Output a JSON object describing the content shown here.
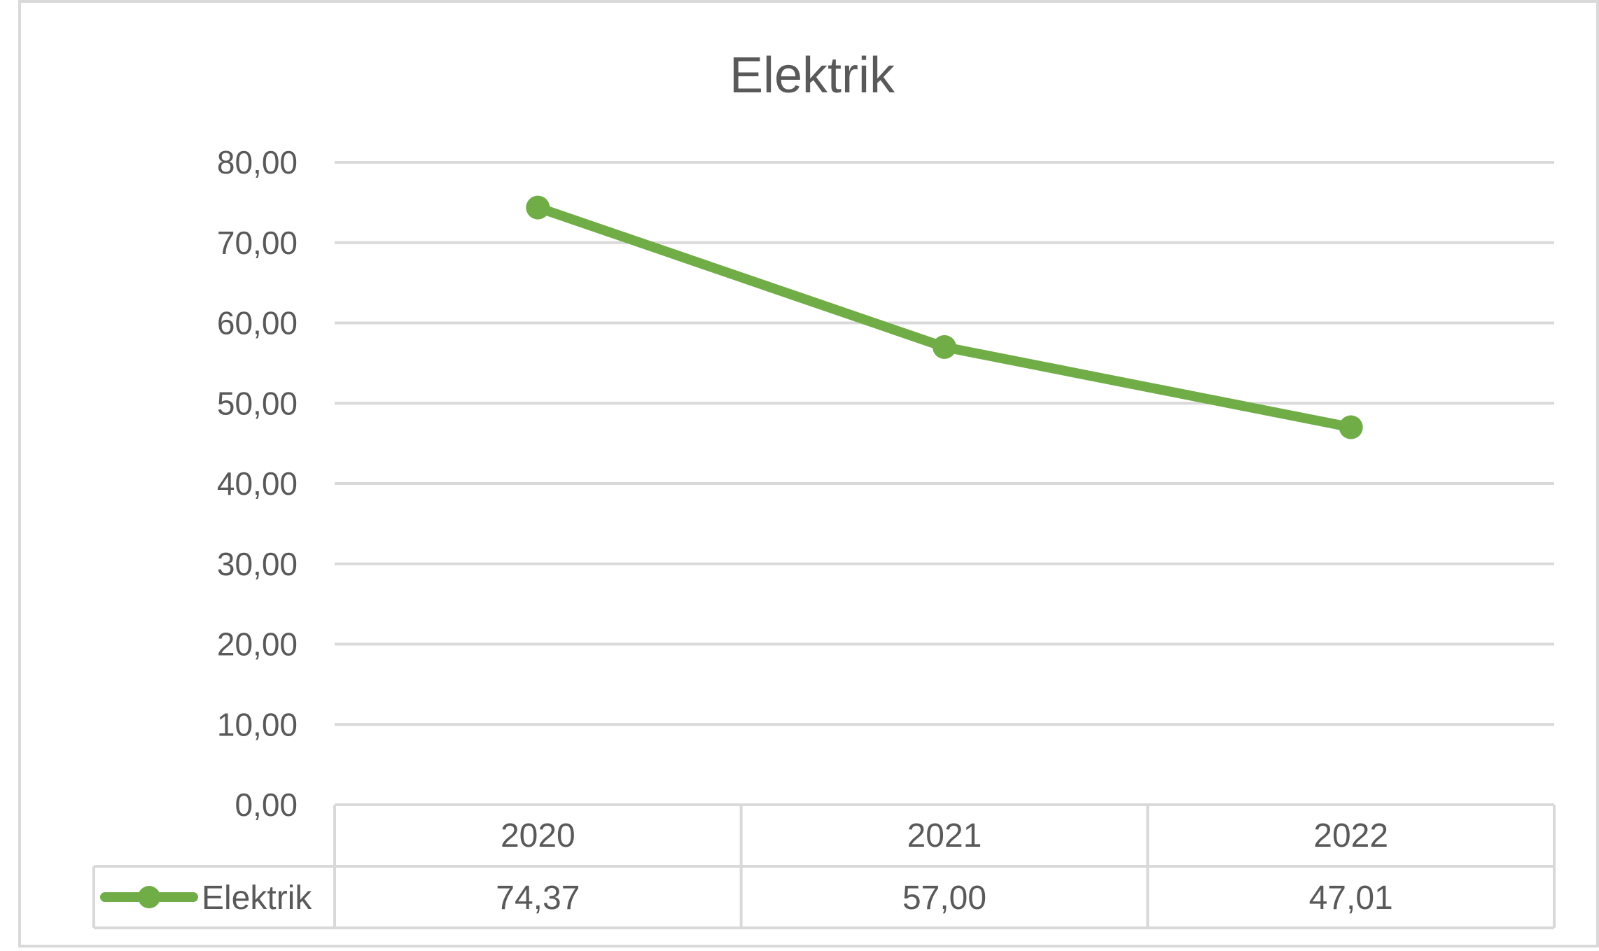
{
  "chart_data": {
    "type": "line",
    "title": "Elektrik",
    "categories": [
      "2020",
      "2021",
      "2022"
    ],
    "series": [
      {
        "name": "Elektrik",
        "values": [
          74.37,
          57.0,
          47.01
        ],
        "value_labels": [
          "74,37",
          "57,00",
          "47,01"
        ],
        "color": "#70AD47"
      }
    ],
    "y_ticks": [
      {
        "value": 0,
        "label": "0,00"
      },
      {
        "value": 10,
        "label": "10,00"
      },
      {
        "value": 20,
        "label": "20,00"
      },
      {
        "value": 30,
        "label": "30,00"
      },
      {
        "value": 40,
        "label": "40,00"
      },
      {
        "value": 50,
        "label": "50,00"
      },
      {
        "value": 60,
        "label": "60,00"
      },
      {
        "value": 70,
        "label": "70,00"
      },
      {
        "value": 80,
        "label": "80,00"
      }
    ],
    "ylim": [
      0,
      80
    ],
    "grid": true,
    "legend": "data-table",
    "data_table": true,
    "colors": {
      "series": "#70AD47",
      "gridline": "#D9D9D9",
      "text": "#595959",
      "border": "#D9D9D9"
    }
  }
}
